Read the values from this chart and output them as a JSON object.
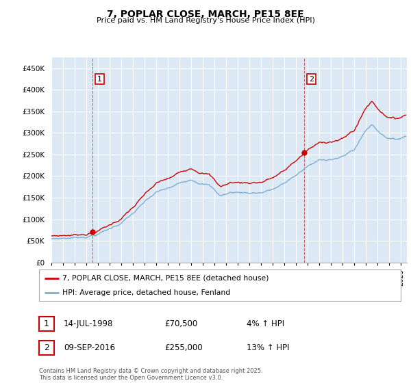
{
  "title": "7, POPLAR CLOSE, MARCH, PE15 8EE",
  "subtitle": "Price paid vs. HM Land Registry's House Price Index (HPI)",
  "ylim": [
    0,
    475000
  ],
  "xlim_start": 1995.0,
  "xlim_end": 2025.5,
  "sale1_date": 1998.54,
  "sale1_price": 70500,
  "sale1_label": "1",
  "sale2_date": 2016.69,
  "sale2_price": 255000,
  "sale2_label": "2",
  "line_color_red": "#cc0000",
  "line_color_blue": "#7aadd4",
  "fill_color_blue": "#dce9f5",
  "background_color": "#dce9f5",
  "grid_color": "#ffffff",
  "legend_line1": "7, POPLAR CLOSE, MARCH, PE15 8EE (detached house)",
  "legend_line2": "HPI: Average price, detached house, Fenland",
  "table_row1": [
    "1",
    "14-JUL-1998",
    "£70,500",
    "4% ↑ HPI"
  ],
  "table_row2": [
    "2",
    "09-SEP-2016",
    "£255,000",
    "13% ↑ HPI"
  ],
  "footer": "Contains HM Land Registry data © Crown copyright and database right 2025.\nThis data is licensed under the Open Government Licence v3.0.",
  "yticks": [
    0,
    50000,
    100000,
    150000,
    200000,
    250000,
    300000,
    350000,
    400000,
    450000
  ],
  "ytick_labels": [
    "£0",
    "£50K",
    "£100K",
    "£150K",
    "£200K",
    "£250K",
    "£300K",
    "£350K",
    "£400K",
    "£450K"
  ],
  "xticks": [
    1995,
    1996,
    1997,
    1998,
    1999,
    2000,
    2001,
    2002,
    2003,
    2004,
    2005,
    2006,
    2007,
    2008,
    2009,
    2010,
    2011,
    2012,
    2013,
    2014,
    2015,
    2016,
    2017,
    2018,
    2019,
    2020,
    2021,
    2022,
    2023,
    2024,
    2025
  ]
}
